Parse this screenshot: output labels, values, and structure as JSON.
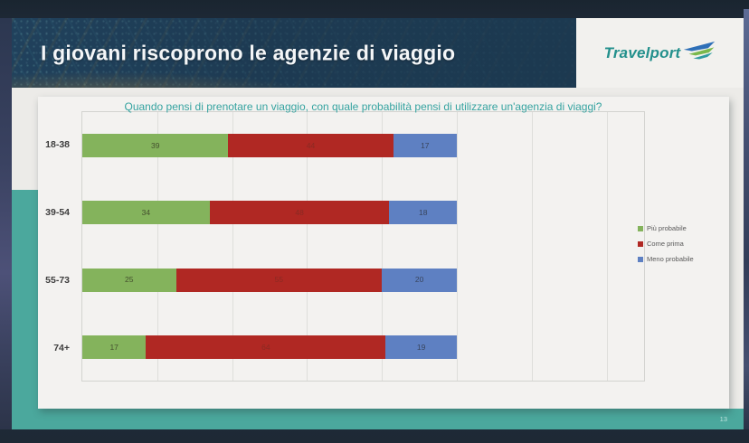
{
  "header": {
    "title": "I giovani riscoprono le agenzie di viaggio",
    "logo": {
      "text": "Travelport"
    }
  },
  "footer": {
    "page_number": "13"
  },
  "chart_data": {
    "type": "bar",
    "orientation": "horizontal",
    "stacked": true,
    "title": "Quando pensi di prenotare un viaggio, con quale probabilità pensi di utilizzare un'agenzia di viaggi?",
    "categories": [
      "18-38",
      "39-54",
      "55-73",
      "74+"
    ],
    "series": [
      {
        "name": "Più probabile",
        "color": "#84b35c",
        "label_color": "#44502e",
        "values": [
          39,
          34,
          25,
          17
        ]
      },
      {
        "name": "Come prima",
        "color": "#b02823",
        "label_color": "#8a2a23",
        "values": [
          44,
          48,
          55,
          64
        ]
      },
      {
        "name": "Meno probabile",
        "color": "#5e80c2",
        "label_color": "#39455e",
        "values": [
          17,
          18,
          20,
          19
        ]
      }
    ],
    "xlim": [
      0,
      150
    ],
    "gridline_step": 20,
    "grid": true,
    "legend_position": "right"
  },
  "colors": {
    "header_bg": "#1d3a52",
    "teal_accent": "#4ba89d",
    "slide_bg": "#ecebe8",
    "card_bg": "#f3f2f0",
    "chart_title_text": "#35a3a0",
    "logo_teal": "#23908c",
    "title_text": "#f4f6f8"
  }
}
